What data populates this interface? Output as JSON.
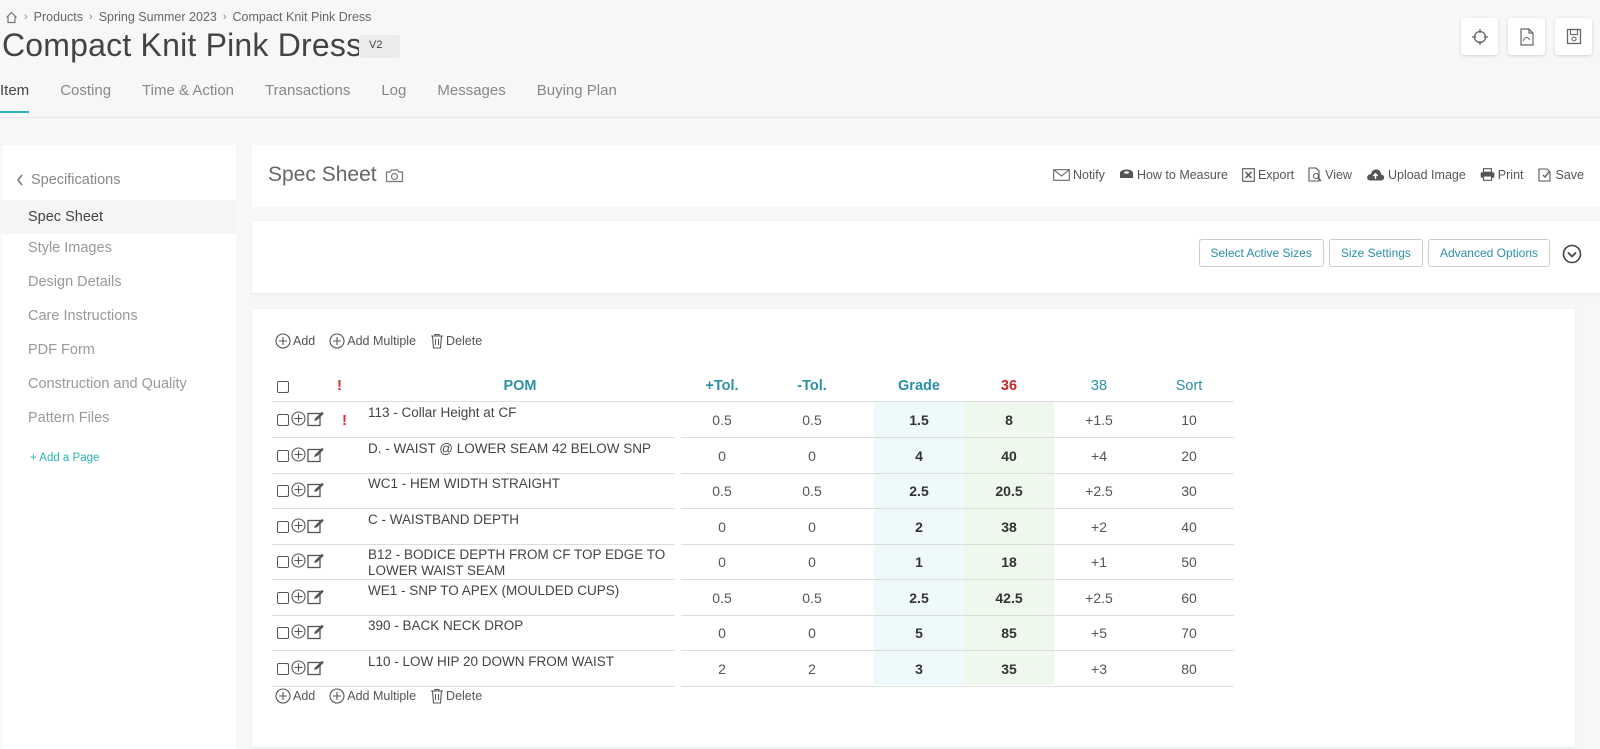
{
  "breadcrumb": {
    "items": [
      "Products",
      "Spring Summer 2023",
      "Compact Knit Pink Dress"
    ]
  },
  "page": {
    "title": "Compact Knit Pink Dress",
    "version": "V2"
  },
  "top_actions": [
    "target-icon",
    "pdf-icon",
    "save-icon"
  ],
  "tabs": [
    "Item",
    "Costing",
    "Time & Action",
    "Transactions",
    "Log",
    "Messages",
    "Buying Plan"
  ],
  "active_tab": "Item",
  "sidebar": {
    "back_label": "Specifications",
    "items": [
      "Spec Sheet",
      "Style Images",
      "Design Details",
      "Care Instructions",
      "PDF Form",
      "Construction and Quality",
      "Pattern Files"
    ],
    "active": "Spec Sheet",
    "add_label": "+ Add a Page"
  },
  "spec": {
    "title": "Spec Sheet",
    "actions": [
      "Notify",
      "How to Measure",
      "Export",
      "View",
      "Upload Image",
      "Print",
      "Save"
    ]
  },
  "options": {
    "buttons": [
      "Select Active Sizes",
      "Size Settings",
      "Advanced Options"
    ]
  },
  "toolbar": {
    "add": "Add",
    "add_multiple": "Add Multiple",
    "delete": "Delete"
  },
  "table": {
    "headers": {
      "pom": "POM",
      "plus_tol": "+Tol.",
      "minus_tol": "-Tol.",
      "grade": "Grade",
      "size_36": "36",
      "size_38": "38",
      "sort": "Sort"
    },
    "colors": {
      "header_teal": "#2a8fa8",
      "header_red": "#c62828",
      "alert": "#d32f2f",
      "grade_bg": "#eef9fb",
      "size_bg": "#eef8ec"
    },
    "rows": [
      {
        "pom": "113 - Collar Height at CF",
        "alert": true,
        "plus_tol": "0.5",
        "minus_tol": "0.5",
        "grade": "1.5",
        "s36": "8",
        "s38": "+1.5",
        "sort": "10"
      },
      {
        "pom": "D. - WAIST @ LOWER SEAM 42 BELOW SNP",
        "alert": false,
        "plus_tol": "0",
        "minus_tol": "0",
        "grade": "4",
        "s36": "40",
        "s38": "+4",
        "sort": "20"
      },
      {
        "pom": "WC1 - HEM WIDTH STRAIGHT",
        "alert": false,
        "plus_tol": "0.5",
        "minus_tol": "0.5",
        "grade": "2.5",
        "s36": "20.5",
        "s38": "+2.5",
        "sort": "30"
      },
      {
        "pom": "C - WAISTBAND DEPTH",
        "alert": false,
        "plus_tol": "0",
        "minus_tol": "0",
        "grade": "2",
        "s36": "38",
        "s38": "+2",
        "sort": "40"
      },
      {
        "pom": "B12 - BODICE DEPTH FROM CF TOP EDGE TO LOWER WAIST SEAM",
        "alert": false,
        "plus_tol": "0",
        "minus_tol": "0",
        "grade": "1",
        "s36": "18",
        "s38": "+1",
        "sort": "50"
      },
      {
        "pom": "WE1 - SNP TO APEX (MOULDED CUPS)",
        "alert": false,
        "plus_tol": "0.5",
        "minus_tol": "0.5",
        "grade": "2.5",
        "s36": "42.5",
        "s38": "+2.5",
        "sort": "60"
      },
      {
        "pom": "390 - BACK NECK DROP",
        "alert": false,
        "plus_tol": "0",
        "minus_tol": "0",
        "grade": "5",
        "s36": "85",
        "s38": "+5",
        "sort": "70"
      },
      {
        "pom": "L10 - LOW HIP 20 DOWN FROM WAIST",
        "alert": false,
        "plus_tol": "2",
        "minus_tol": "2",
        "grade": "3",
        "s36": "35",
        "s38": "+3",
        "sort": "80"
      }
    ]
  }
}
